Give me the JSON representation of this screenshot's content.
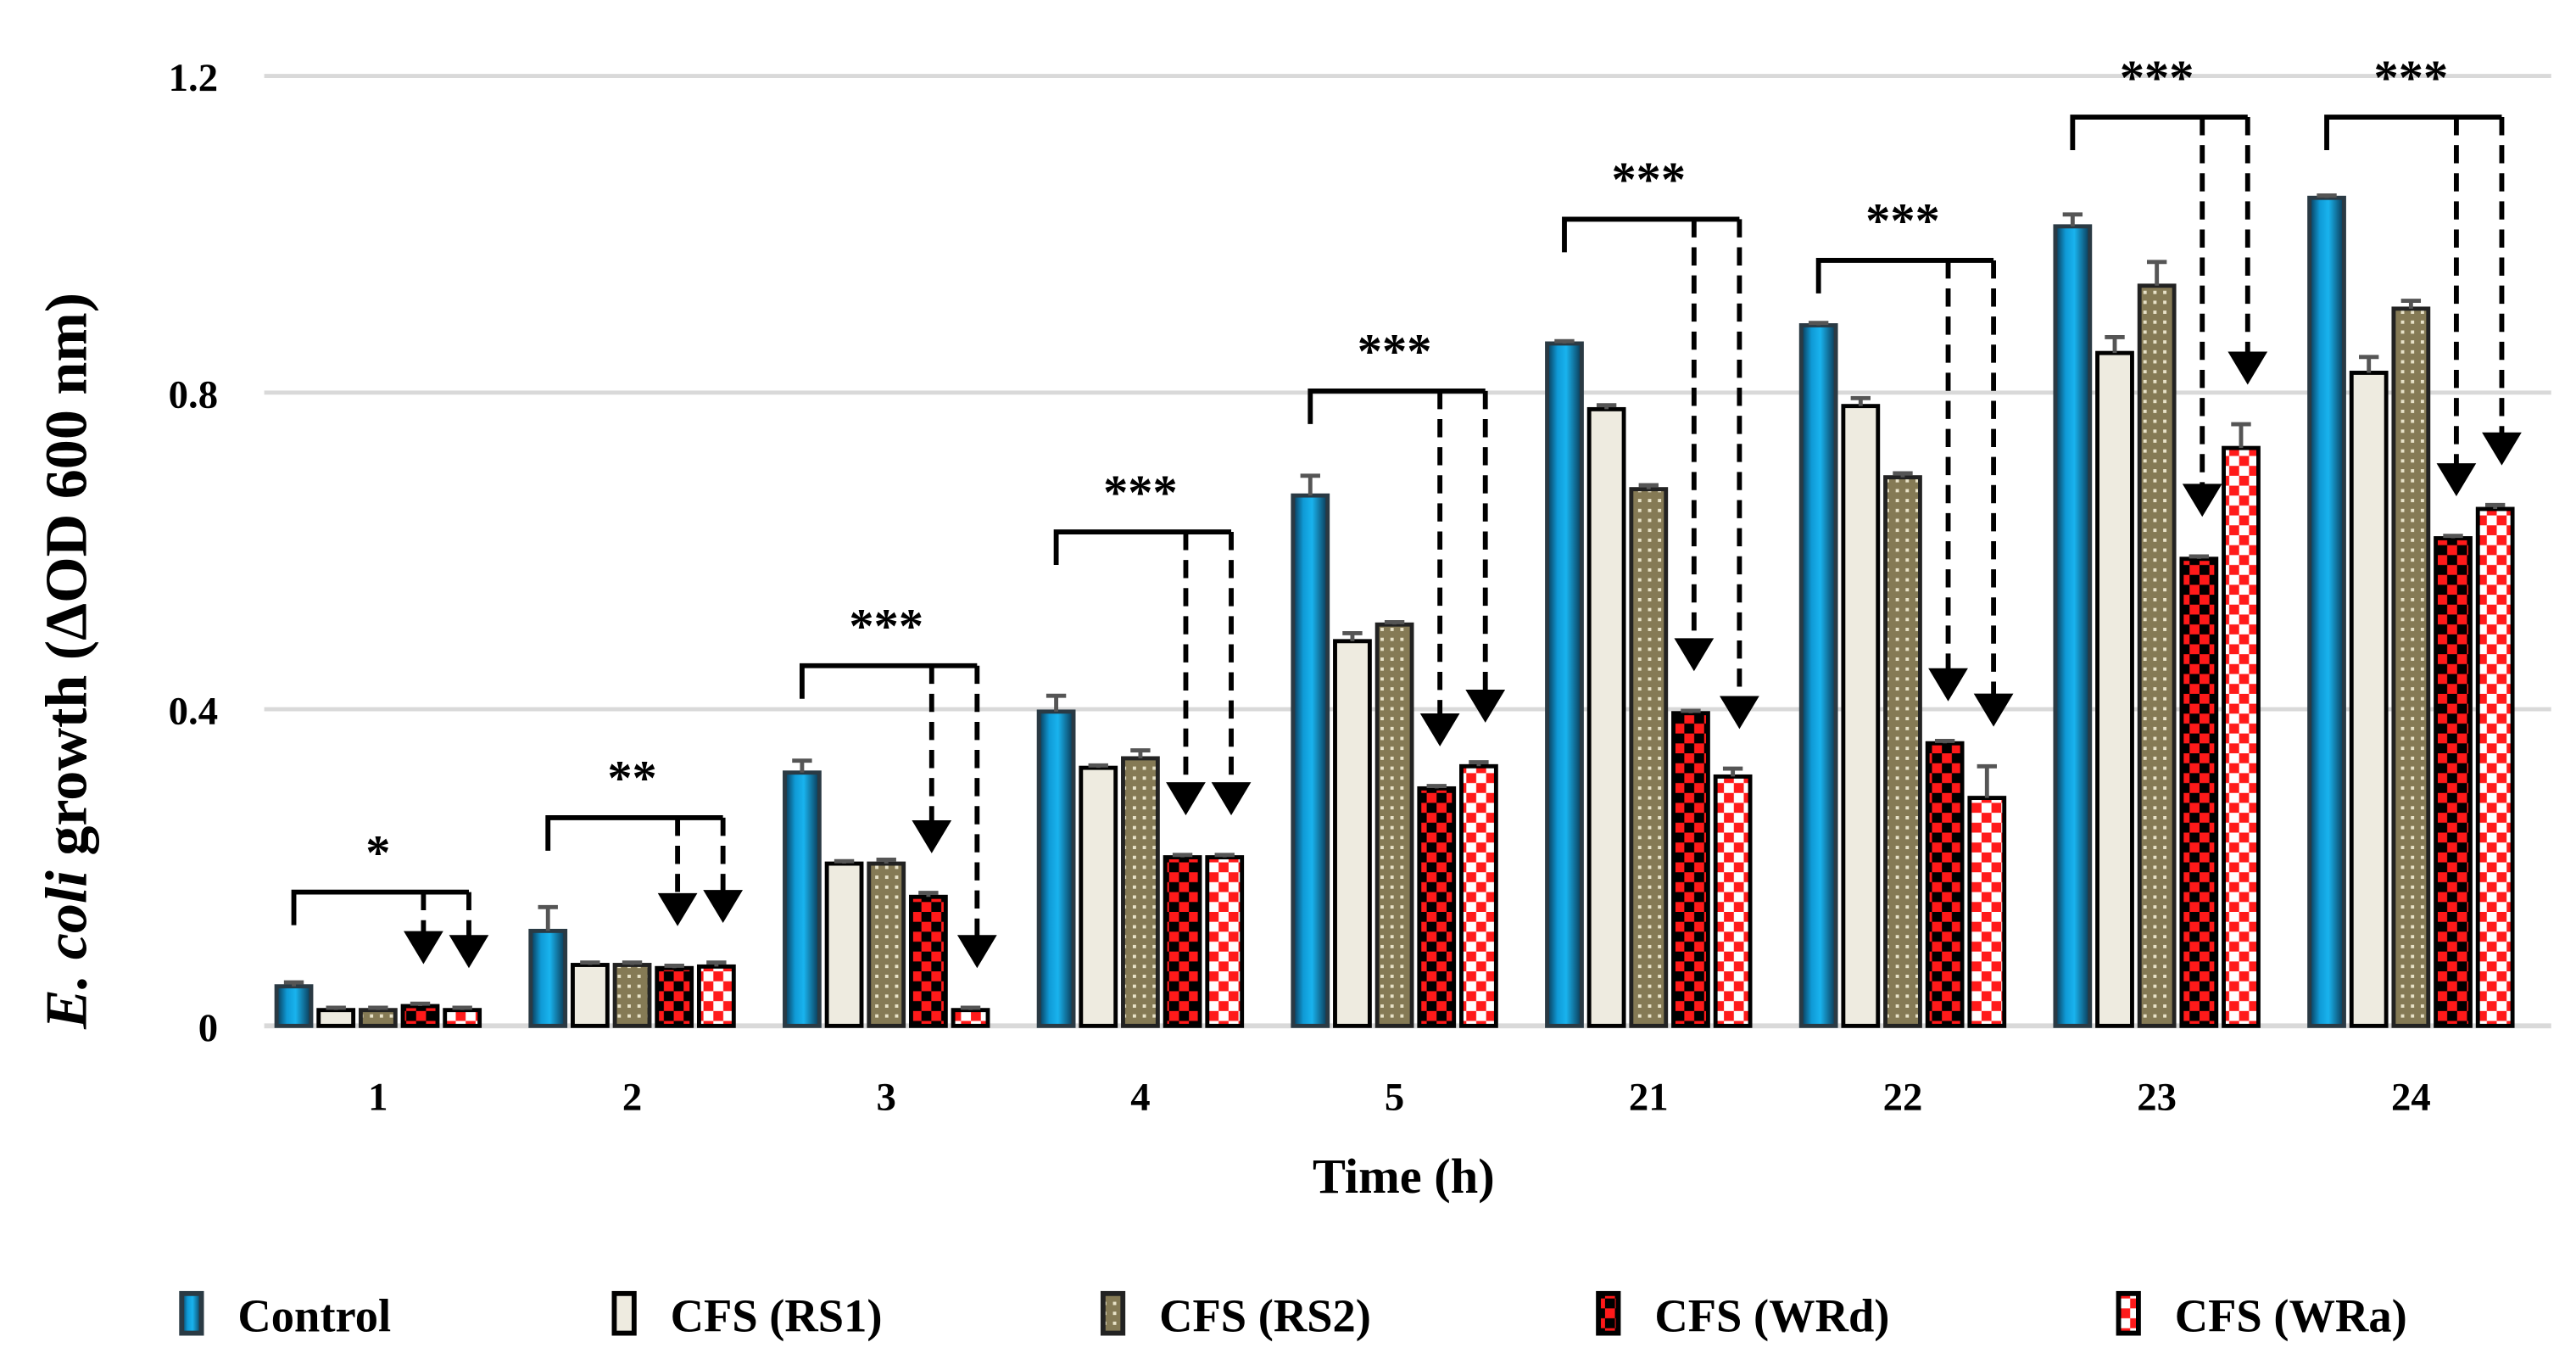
{
  "chart_data": {
    "type": "bar",
    "title": "",
    "xlabel": "Time (h)",
    "ylabel_italic": "E. coli",
    "ylabel_rest": " growth (ΔOD 600 nm)",
    "ylim": [
      0,
      1.2
    ],
    "yticks": [
      0,
      0.4,
      0.8,
      1.2
    ],
    "ytick_labels": [
      "0",
      "0.4",
      "0.8",
      "1.2"
    ],
    "grid": "horizontal",
    "legend_position": "bottom",
    "categories": [
      "1",
      "2",
      "3",
      "4",
      "5",
      "21",
      "22",
      "23",
      "24"
    ],
    "series": [
      {
        "name": "Control",
        "pattern": "blue-gradient",
        "color": "#0f9ad6",
        "values": [
          0.05,
          0.12,
          0.32,
          0.397,
          0.67,
          0.862,
          0.885,
          1.01,
          1.046
        ],
        "errors": [
          0.005,
          0.03,
          0.015,
          0.02,
          0.025,
          0.003,
          0.003,
          0.015,
          0.003
        ]
      },
      {
        "name": "CFS (RS1)",
        "pattern": "beige",
        "color": "#eeebe0",
        "values": [
          0.02,
          0.077,
          0.205,
          0.326,
          0.486,
          0.779,
          0.783,
          0.85,
          0.825
        ],
        "errors": [
          0.003,
          0.003,
          0.003,
          0.003,
          0.01,
          0.005,
          0.01,
          0.02,
          0.02
        ]
      },
      {
        "name": "CFS (RS2)",
        "pattern": "olive-dots",
        "color": "#8a8060",
        "values": [
          0.02,
          0.077,
          0.205,
          0.338,
          0.507,
          0.678,
          0.693,
          0.935,
          0.906
        ],
        "errors": [
          0.003,
          0.003,
          0.005,
          0.01,
          0.003,
          0.005,
          0.005,
          0.03,
          0.01
        ]
      },
      {
        "name": "CFS (WRd)",
        "pattern": "red-black-checker",
        "color": "#ff1a1a",
        "values": [
          0.025,
          0.073,
          0.163,
          0.213,
          0.3,
          0.395,
          0.357,
          0.59,
          0.616
        ],
        "errors": [
          0.003,
          0.003,
          0.005,
          0.003,
          0.003,
          0.003,
          0.003,
          0.003,
          0.003
        ]
      },
      {
        "name": "CFS (WRa)",
        "pattern": "red-white-checker",
        "color": "#ff1a1a",
        "values": [
          0.02,
          0.075,
          0.02,
          0.213,
          0.328,
          0.315,
          0.288,
          0.73,
          0.653
        ],
        "errors": [
          0.003,
          0.005,
          0.003,
          0.003,
          0.005,
          0.01,
          0.04,
          0.03,
          0.005
        ]
      }
    ],
    "significance": [
      {
        "label": "*",
        "bracket_level": 0.169
      },
      {
        "label": "**",
        "bracket_level": 0.263
      },
      {
        "label": "***",
        "bracket_level": 0.455
      },
      {
        "label": "***",
        "bracket_level": 0.624
      },
      {
        "label": "***",
        "bracket_level": 0.802
      },
      {
        "label": "***",
        "bracket_level": 1.019
      },
      {
        "label": "***",
        "bracket_level": 0.967
      },
      {
        "label": "***",
        "bracket_level": 1.148
      },
      {
        "label": "***",
        "bracket_level": 1.148
      }
    ]
  }
}
